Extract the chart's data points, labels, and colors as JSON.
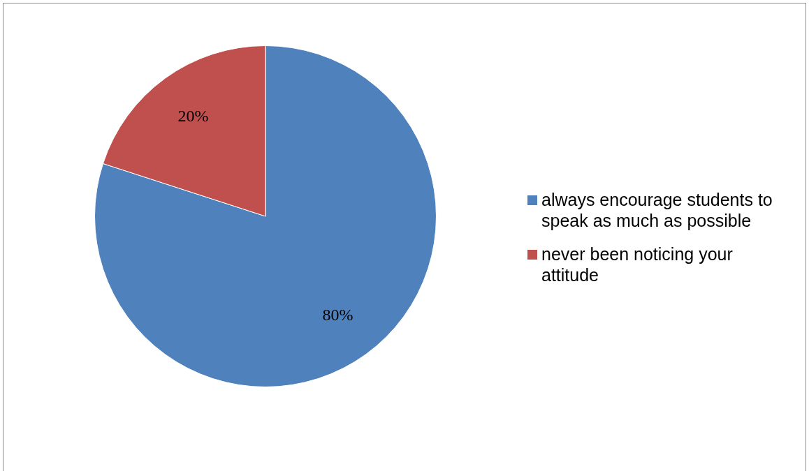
{
  "chart_data": {
    "type": "pie",
    "categories": [
      "always encourage students to speak as much as possible",
      "never been noticing your attitude"
    ],
    "values": [
      80,
      20
    ],
    "colors": [
      "#4f81bd",
      "#c0504d"
    ],
    "value_labels": [
      "80%",
      "20%"
    ],
    "legend": "right"
  }
}
